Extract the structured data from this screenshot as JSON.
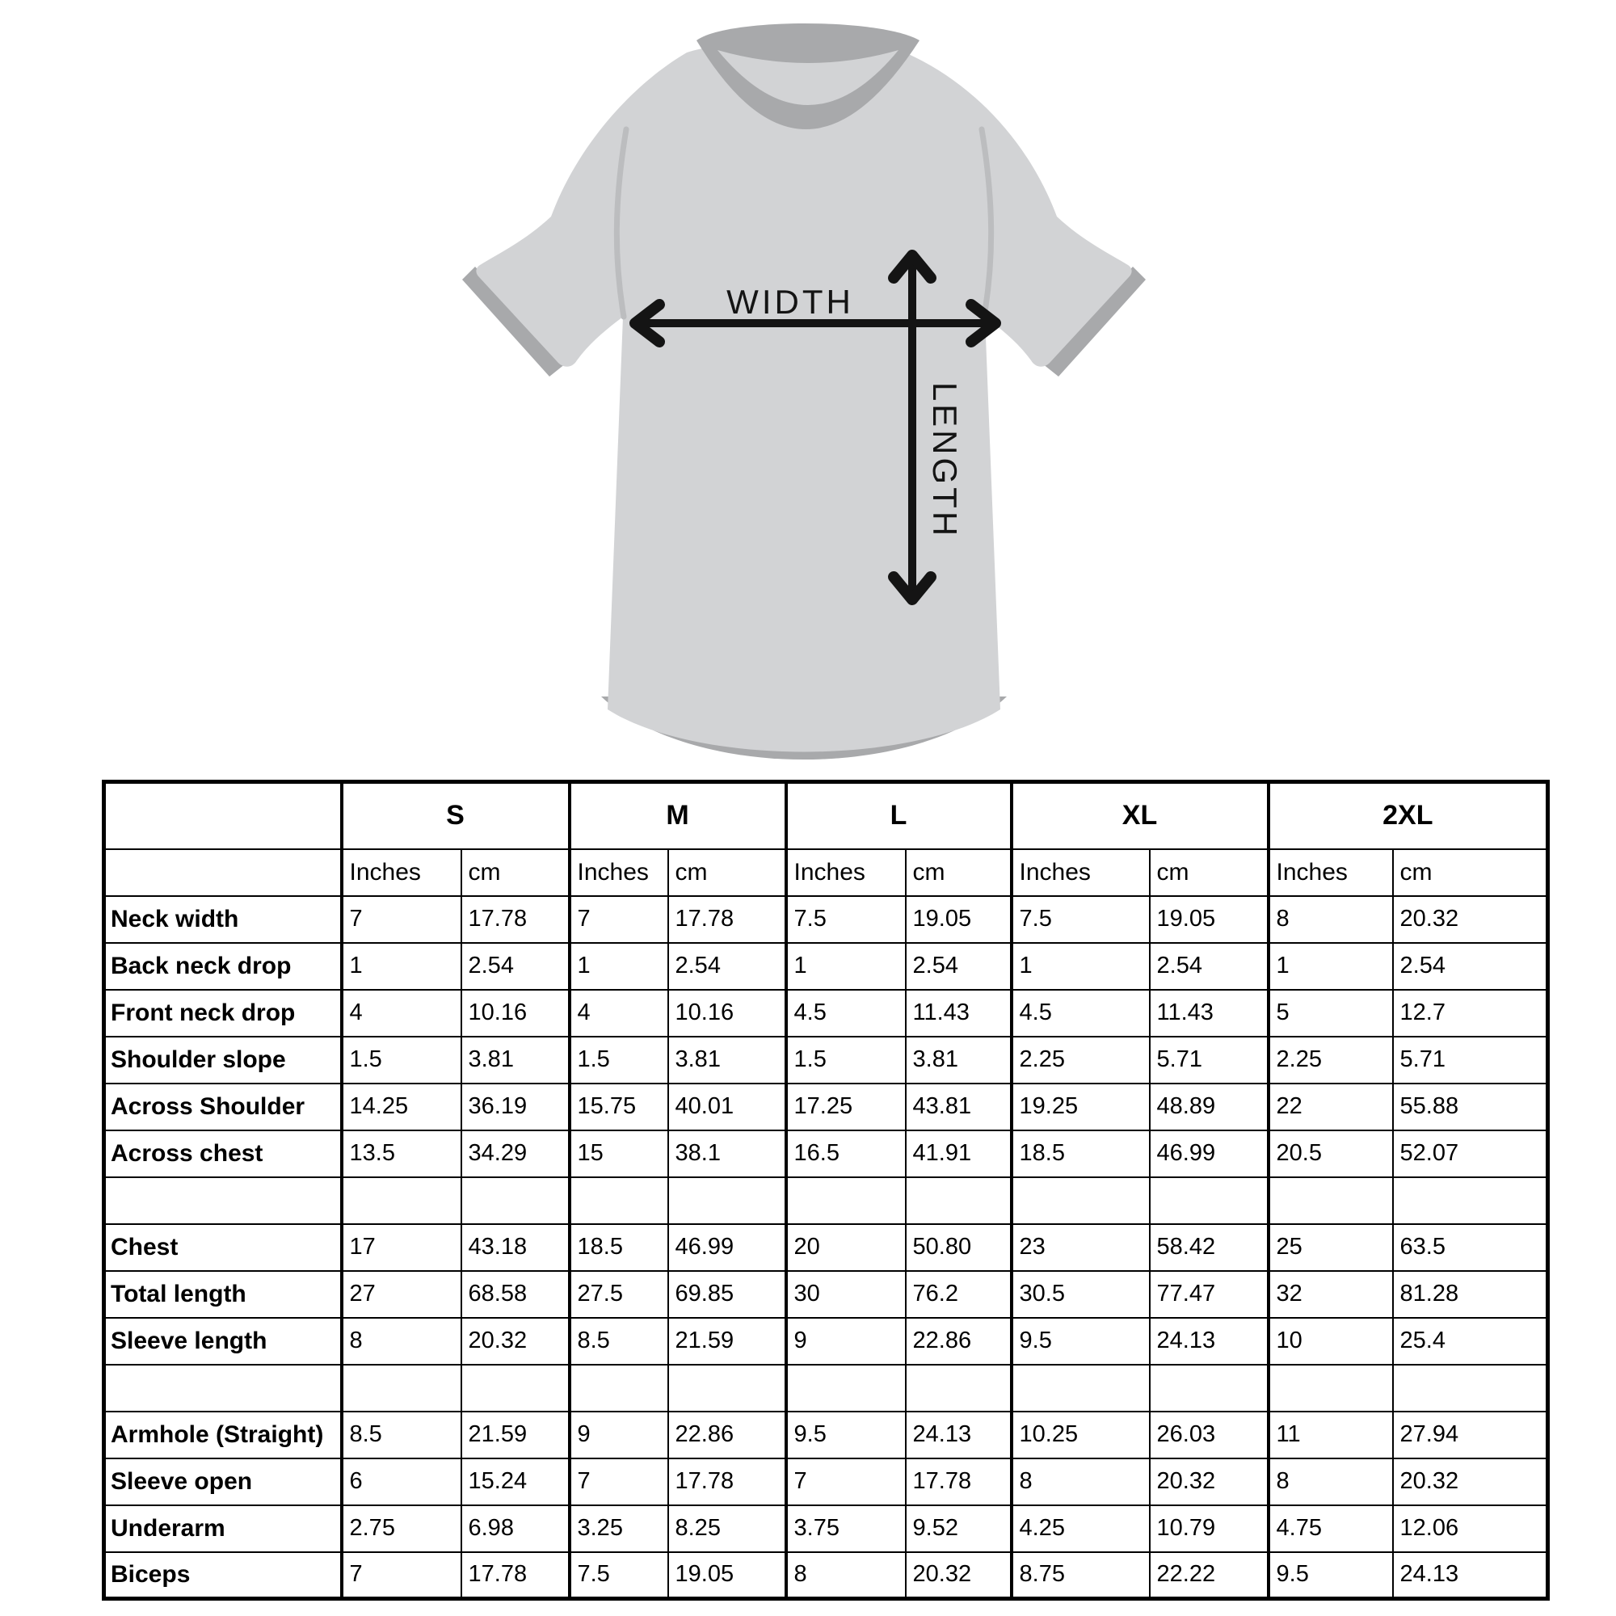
{
  "diagram": {
    "width_label": "WIDTH",
    "length_label": "LENGTH"
  },
  "colors": {
    "shirt_body": "#d2d3d5",
    "shirt_trim": "#a8a9ab",
    "seam_shade": "#bcbdbf",
    "arrow": "#141414",
    "table_border": "#000000"
  },
  "table": {
    "sizes": [
      "S",
      "M",
      "L",
      "XL",
      "2XL"
    ],
    "unit_headers": [
      "Inches",
      "cm"
    ],
    "rows": [
      {
        "label": "Neck width",
        "values": [
          "7",
          "17.78",
          "7",
          "17.78",
          "7.5",
          "19.05",
          "7.5",
          "19.05",
          "8",
          "20.32"
        ]
      },
      {
        "label": "Back neck drop",
        "values": [
          "1",
          "2.54",
          "1",
          "2.54",
          "1",
          "2.54",
          "1",
          "2.54",
          "1",
          "2.54"
        ]
      },
      {
        "label": "Front neck drop",
        "values": [
          "4",
          "10.16",
          "4",
          "10.16",
          "4.5",
          "11.43",
          "4.5",
          "11.43",
          "5",
          "12.7"
        ]
      },
      {
        "label": "Shoulder slope",
        "values": [
          "1.5",
          "3.81",
          "1.5",
          "3.81",
          "1.5",
          "3.81",
          "2.25",
          "5.71",
          "2.25",
          "5.71"
        ]
      },
      {
        "label": "Across Shoulder",
        "values": [
          "14.25",
          "36.19",
          "15.75",
          "40.01",
          "17.25",
          "43.81",
          "19.25",
          "48.89",
          "22",
          "55.88"
        ]
      },
      {
        "label": "Across chest",
        "values": [
          "13.5",
          "34.29",
          "15",
          "38.1",
          "16.5",
          "41.91",
          "18.5",
          "46.99",
          "20.5",
          "52.07"
        ]
      },
      {
        "label": "",
        "values": [
          "",
          "",
          "",
          "",
          "",
          "",
          "",
          "",
          "",
          ""
        ]
      },
      {
        "label": "Chest",
        "values": [
          "17",
          "43.18",
          "18.5",
          "46.99",
          "20",
          "50.80",
          "23",
          "58.42",
          "25",
          "63.5"
        ]
      },
      {
        "label": "Total length",
        "values": [
          "27",
          "68.58",
          "27.5",
          "69.85",
          "30",
          "76.2",
          "30.5",
          "77.47",
          "32",
          "81.28"
        ]
      },
      {
        "label": "Sleeve length",
        "values": [
          "8",
          "20.32",
          "8.5",
          "21.59",
          "9",
          "22.86",
          "9.5",
          "24.13",
          "10",
          "25.4"
        ]
      },
      {
        "label": "",
        "values": [
          "",
          "",
          "",
          "",
          "",
          "",
          "",
          "",
          "",
          ""
        ]
      },
      {
        "label": "Armhole (Straight)",
        "values": [
          "8.5",
          "21.59",
          "9",
          "22.86",
          "9.5",
          "24.13",
          "10.25",
          "26.03",
          "11",
          "27.94"
        ]
      },
      {
        "label": "Sleeve open",
        "values": [
          "6",
          "15.24",
          "7",
          "17.78",
          "7",
          "17.78",
          "8",
          "20.32",
          "8",
          "20.32"
        ]
      },
      {
        "label": "Underarm",
        "values": [
          "2.75",
          "6.98",
          "3.25",
          "8.25",
          "3.75",
          "9.52",
          "4.25",
          "10.79",
          "4.75",
          "12.06"
        ]
      },
      {
        "label": "Biceps",
        "values": [
          "7",
          "17.78",
          "7.5",
          "19.05",
          "8",
          "20.32",
          "8.75",
          "22.22",
          "9.5",
          "24.13"
        ]
      }
    ]
  }
}
